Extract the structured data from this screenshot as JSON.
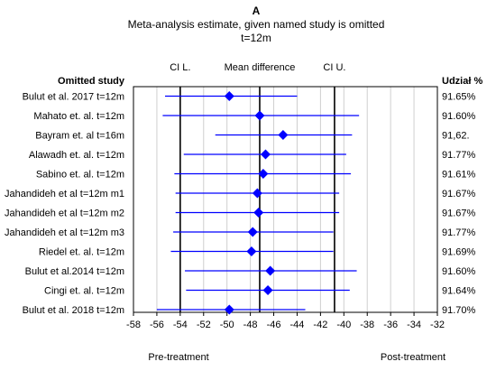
{
  "chart_data": {
    "type": "forest",
    "panel_label": "A",
    "title_lines": [
      "Meta-analysis estimate, given named study is omitted",
      "t=12m"
    ],
    "header_left": "Omitted study",
    "header_right": "Udział %",
    "col_labels": {
      "ci_lower": "CI L.",
      "mean": "Mean difference",
      "ci_upper": "CI U."
    },
    "reference_lines": {
      "ci_lower": -54,
      "mean": -47.2,
      "ci_upper": -40.8
    },
    "xlim": [
      -58,
      -32
    ],
    "xticks": [
      -58,
      -56,
      -54,
      -52,
      -50,
      -48,
      -46,
      -44,
      -42,
      -40,
      -38,
      -36,
      -34,
      -32
    ],
    "grid": true,
    "marker_color": "#0000ff",
    "rows": [
      {
        "study": "Bulut et al. 2017 t=12m",
        "estimate": -49.8,
        "ci": [
          -55.3,
          -44.0
        ],
        "weight": "91.65%"
      },
      {
        "study": "Mahato et. al. t=12m",
        "estimate": -47.2,
        "ci": [
          -55.5,
          -38.7
        ],
        "weight": "91.60%"
      },
      {
        "study": "Bayram et. al t=16m",
        "estimate": -45.2,
        "ci": [
          -51.0,
          -39.3
        ],
        "weight": "91,62."
      },
      {
        "study": "Alawadh et. al. t=12m",
        "estimate": -46.7,
        "ci": [
          -53.7,
          -39.8
        ],
        "weight": "91.77%"
      },
      {
        "study": "Sabino et. al. t=12m",
        "estimate": -46.9,
        "ci": [
          -54.5,
          -39.4
        ],
        "weight": "91.61%"
      },
      {
        "study": "Jahandideh et al t=12m m1",
        "estimate": -47.4,
        "ci": [
          -54.4,
          -40.4
        ],
        "weight": "91.67%"
      },
      {
        "study": "Jahandideh et al t=12m m2",
        "estimate": -47.3,
        "ci": [
          -54.4,
          -40.4
        ],
        "weight": "91.67%"
      },
      {
        "study": "Jahandideh et al t=12m m3",
        "estimate": -47.8,
        "ci": [
          -54.6,
          -40.9
        ],
        "weight": "91.77%"
      },
      {
        "study": "Riedel et. al. t=12m",
        "estimate": -47.9,
        "ci": [
          -54.8,
          -40.9
        ],
        "weight": "91.69%"
      },
      {
        "study": "Bulut et al.2014 t=12m",
        "estimate": -46.3,
        "ci": [
          -53.6,
          -38.9
        ],
        "weight": "91.60%"
      },
      {
        "study": "Cingi et. al. t=12m",
        "estimate": -46.5,
        "ci": [
          -53.5,
          -39.5
        ],
        "weight": "91.64%"
      },
      {
        "study": "Bulut et al. 2018 t=12m",
        "estimate": -49.8,
        "ci": [
          -56.0,
          -43.3
        ],
        "weight": "91.70%"
      }
    ],
    "footer_left": "Pre-treatment",
    "footer_right": "Post-treatment"
  }
}
